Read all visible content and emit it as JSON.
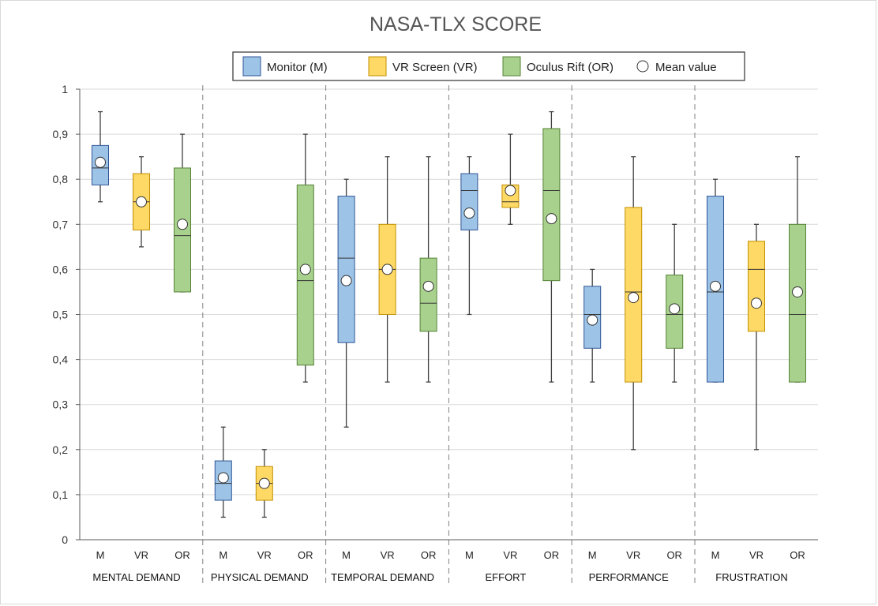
{
  "chart_data": {
    "type": "boxplot",
    "title": "NASA-TLX SCORE",
    "ylim": [
      0,
      1
    ],
    "yticks": [
      0,
      0.1,
      0.2,
      0.3,
      0.4,
      0.5,
      0.6,
      0.7,
      0.8,
      0.9,
      1
    ],
    "ytick_labels": [
      "0",
      "0,1",
      "0,2",
      "0,3",
      "0,4",
      "0,5",
      "0,6",
      "0,7",
      "0,8",
      "0,9",
      "1"
    ],
    "grid": true,
    "legend_position": "top",
    "legend": [
      {
        "key": "M",
        "label": "Monitor (M)",
        "color": "#9dc3e6"
      },
      {
        "key": "VR",
        "label": "VR Screen (VR)",
        "color": "#ffd966"
      },
      {
        "key": "OR",
        "label": "Oculus Rift (OR)",
        "color": "#a9d18e"
      },
      {
        "key": "mean",
        "label": "Mean value",
        "color": "#ffffff"
      }
    ],
    "groups": [
      {
        "name": "MENTAL DEMAND",
        "boxes": [
          {
            "key": "M",
            "label": "M",
            "min": 0.75,
            "q1": 0.7875,
            "median": 0.825,
            "q3": 0.875,
            "max": 0.95,
            "mean": 0.8375
          },
          {
            "key": "VR",
            "label": "VR",
            "min": 0.65,
            "q1": 0.6875,
            "median": 0.75,
            "q3": 0.8125,
            "max": 0.85,
            "mean": 0.75
          },
          {
            "key": "OR",
            "label": "OR",
            "min": 0.55,
            "q1": 0.55,
            "median": 0.675,
            "q3": 0.825,
            "max": 0.9,
            "mean": 0.7
          }
        ]
      },
      {
        "name": "PHYSICAL DEMAND",
        "boxes": [
          {
            "key": "M",
            "label": "M",
            "min": 0.05,
            "q1": 0.0875,
            "median": 0.125,
            "q3": 0.175,
            "max": 0.25,
            "mean": 0.1375
          },
          {
            "key": "VR",
            "label": "VR",
            "min": 0.05,
            "q1": 0.0875,
            "median": 0.125,
            "q3": 0.1625,
            "max": 0.2,
            "mean": 0.125
          },
          {
            "key": "OR",
            "label": "OR",
            "min": 0.35,
            "q1": 0.3875,
            "median": 0.575,
            "q3": 0.7875,
            "max": 0.9,
            "mean": 0.6
          }
        ]
      },
      {
        "name": "TEMPORAL DEMAND",
        "boxes": [
          {
            "key": "M",
            "label": "M",
            "min": 0.25,
            "q1": 0.4375,
            "median": 0.625,
            "q3": 0.7625,
            "max": 0.8,
            "mean": 0.575
          },
          {
            "key": "VR",
            "label": "VR",
            "min": 0.35,
            "q1": 0.5,
            "median": 0.6,
            "q3": 0.7,
            "max": 0.85,
            "mean": 0.6
          },
          {
            "key": "OR",
            "label": "OR",
            "min": 0.35,
            "q1": 0.4625,
            "median": 0.525,
            "q3": 0.625,
            "max": 0.85,
            "mean": 0.5625
          }
        ]
      },
      {
        "name": "EFFORT",
        "boxes": [
          {
            "key": "M",
            "label": "M",
            "min": 0.5,
            "q1": 0.6875,
            "median": 0.775,
            "q3": 0.8125,
            "max": 0.85,
            "mean": 0.725
          },
          {
            "key": "VR",
            "label": "VR",
            "min": 0.7,
            "q1": 0.7375,
            "median": 0.75,
            "q3": 0.7875,
            "max": 0.9,
            "mean": 0.775
          },
          {
            "key": "OR",
            "label": "OR",
            "min": 0.35,
            "q1": 0.575,
            "median": 0.775,
            "q3": 0.9125,
            "max": 0.95,
            "mean": 0.7125
          }
        ]
      },
      {
        "name": "PERFORMANCE",
        "boxes": [
          {
            "key": "M",
            "label": "M",
            "min": 0.35,
            "q1": 0.425,
            "median": 0.5,
            "q3": 0.5625,
            "max": 0.6,
            "mean": 0.4875
          },
          {
            "key": "VR",
            "label": "VR",
            "min": 0.2,
            "q1": 0.35,
            "median": 0.55,
            "q3": 0.7375,
            "max": 0.85,
            "mean": 0.5375
          },
          {
            "key": "OR",
            "label": "OR",
            "min": 0.35,
            "q1": 0.425,
            "median": 0.5,
            "q3": 0.5875,
            "max": 0.7,
            "mean": 0.5125
          }
        ]
      },
      {
        "name": "FRUSTRATION",
        "boxes": [
          {
            "key": "M",
            "label": "M",
            "min": 0.35,
            "q1": 0.35,
            "median": 0.55,
            "q3": 0.7625,
            "max": 0.8,
            "mean": 0.5625
          },
          {
            "key": "VR",
            "label": "VR",
            "min": 0.2,
            "q1": 0.4625,
            "median": 0.6,
            "q3": 0.6625,
            "max": 0.7,
            "mean": 0.525
          },
          {
            "key": "OR",
            "label": "OR",
            "min": 0.35,
            "q1": 0.35,
            "median": 0.5,
            "q3": 0.7,
            "max": 0.85,
            "mean": 0.55
          }
        ]
      }
    ]
  }
}
